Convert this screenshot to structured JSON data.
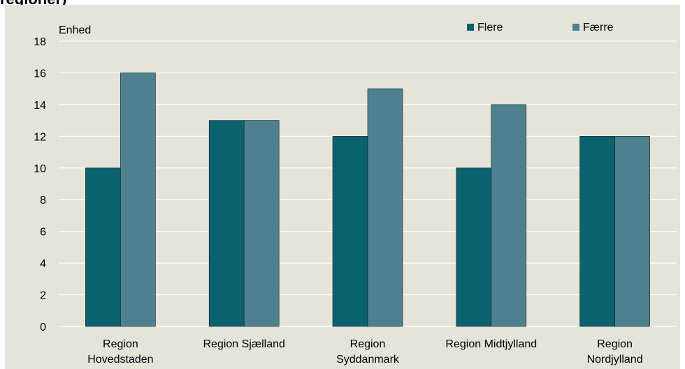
{
  "partial_title": "regioner)",
  "chart_data": {
    "type": "bar",
    "unit_label": "Enhed",
    "categories": [
      [
        "Region",
        "Hovedstaden"
      ],
      [
        "Region Sjælland"
      ],
      [
        "Region",
        "Syddanmark"
      ],
      [
        "Region Midtjylland"
      ],
      [
        "Region",
        "Nordjylland"
      ]
    ],
    "series": [
      {
        "name": "Flere",
        "color": "#0a626e",
        "values": [
          10,
          13,
          12,
          10,
          12
        ]
      },
      {
        "name": "Færre",
        "color": "#4e818e",
        "values": [
          16,
          13,
          15,
          14,
          12
        ]
      }
    ],
    "ylim": [
      0,
      18
    ],
    "yticks": [
      0,
      2,
      4,
      6,
      8,
      10,
      12,
      14,
      16,
      18
    ],
    "grid": true,
    "legend_position": "top-right",
    "colors": {
      "background": "#e5e4d9",
      "grid": "#ffffff"
    }
  }
}
